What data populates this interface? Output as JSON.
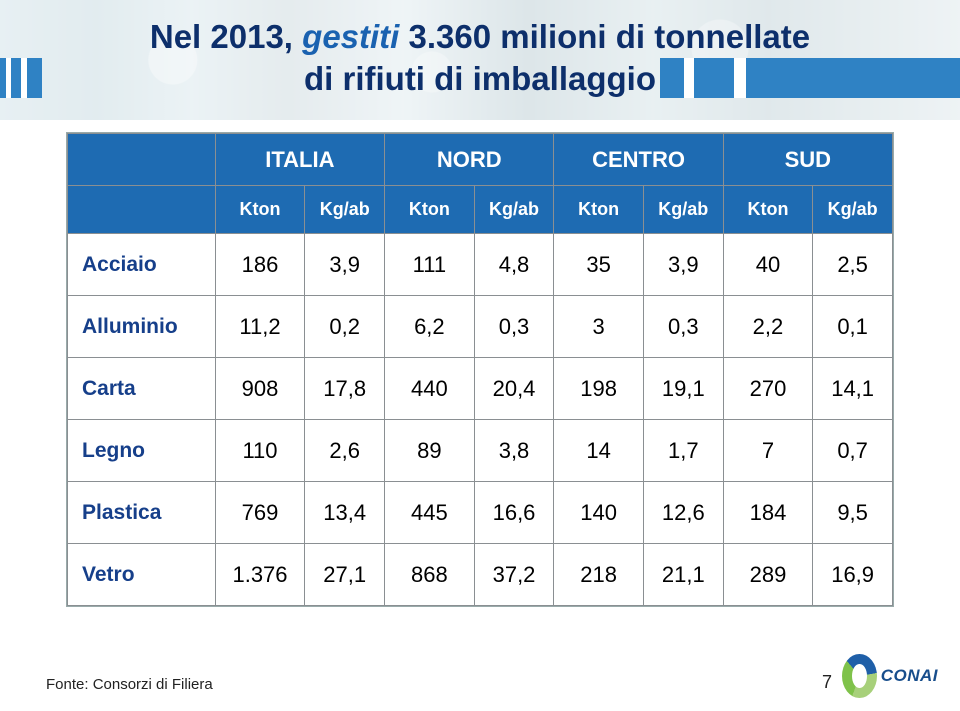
{
  "title": {
    "full": "Nel 2013, gestiti 3.360 milioni di tonnellate di rifiuti di imballaggio",
    "line1_prefix": "Nel 2013, ",
    "line1_em": "gestiti",
    "line1_rest": " 3.360 milioni di tonnellate",
    "line2": "di rifiuti di imballaggio",
    "color_main": "#0d2f6b",
    "color_em": "#1a62b0"
  },
  "accent_color": "#2f82c4",
  "table": {
    "header_bg": "#1e6bb2",
    "header_fg": "#ffffff",
    "groups": [
      "ITALIA",
      "NORD",
      "CENTRO",
      "SUD"
    ],
    "subcols": [
      "Kton",
      "Kg/ab"
    ],
    "row_label_color": "#163f8a",
    "rows": [
      {
        "label": "Acciaio",
        "vals": [
          "186",
          "3,9",
          "111",
          "4,8",
          "35",
          "3,9",
          "40",
          "2,5"
        ]
      },
      {
        "label": "Alluminio",
        "vals": [
          "11,2",
          "0,2",
          "6,2",
          "0,3",
          "3",
          "0,3",
          "2,2",
          "0,1"
        ]
      },
      {
        "label": "Carta",
        "vals": [
          "908",
          "17,8",
          "440",
          "20,4",
          "198",
          "19,1",
          "270",
          "14,1"
        ]
      },
      {
        "label": "Legno",
        "vals": [
          "110",
          "2,6",
          "89",
          "3,8",
          "14",
          "1,7",
          "7",
          "0,7"
        ]
      },
      {
        "label": "Plastica",
        "vals": [
          "769",
          "13,4",
          "445",
          "16,6",
          "140",
          "12,6",
          "184",
          "9,5"
        ]
      },
      {
        "label": "Vetro",
        "vals": [
          "1.376",
          "27,1",
          "868",
          "37,2",
          "218",
          "21,1",
          "289",
          "16,9"
        ]
      }
    ]
  },
  "footer": {
    "source": "Fonte: Consorzi di Filiera",
    "page": "7",
    "logo_text": "CONAI"
  }
}
